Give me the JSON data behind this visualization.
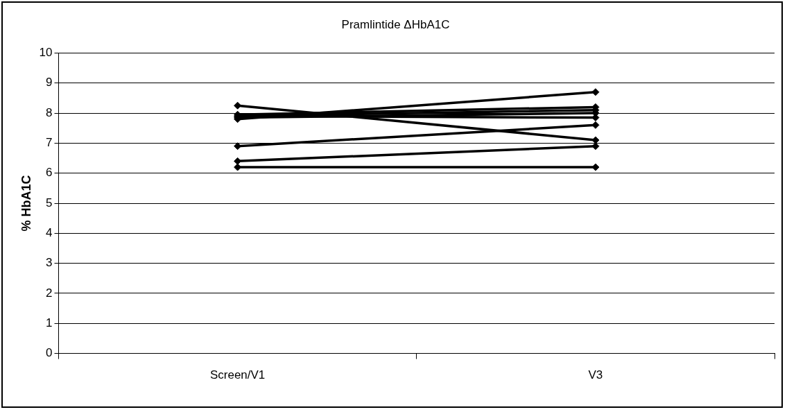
{
  "chart_data": {
    "type": "line",
    "title": "Pramlintide ΔHbA1C",
    "ylabel": "% HbA1C",
    "categories": [
      "Screen/V1",
      "V3"
    ],
    "series": [
      {
        "color": "#000000",
        "values": [
          8.25,
          7.1
        ]
      },
      {
        "color": "#000000",
        "values": [
          7.8,
          8.7
        ]
      },
      {
        "color": "#000000",
        "values": [
          7.95,
          8.2
        ]
      },
      {
        "color": "#000000",
        "values": [
          7.9,
          8.1
        ]
      },
      {
        "color": "#000000",
        "values": [
          7.85,
          8.0
        ]
      },
      {
        "color": "#000000",
        "values": [
          7.9,
          7.85
        ]
      },
      {
        "color": "#000000",
        "values": [
          6.9,
          7.6
        ]
      },
      {
        "color": "#000000",
        "values": [
          6.4,
          6.9
        ]
      },
      {
        "color": "#000000",
        "values": [
          6.2,
          6.2
        ]
      }
    ],
    "ylim": [
      0,
      10
    ],
    "yticks": [
      0,
      1,
      2,
      3,
      4,
      5,
      6,
      7,
      8,
      9,
      10
    ],
    "grid": "y",
    "legend": false,
    "marker": "diamond",
    "line_style": "solid"
  }
}
